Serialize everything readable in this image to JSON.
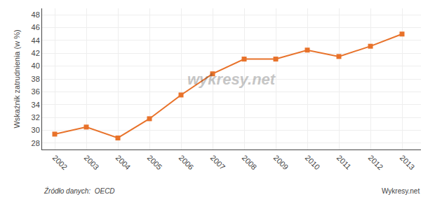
{
  "chart_data": {
    "type": "line",
    "x": [
      2002,
      2003,
      2004,
      2005,
      2006,
      2007,
      2008,
      2009,
      2010,
      2011,
      2012,
      2013
    ],
    "values": [
      29.4,
      30.5,
      28.8,
      31.8,
      35.5,
      38.8,
      41.1,
      41.1,
      42.5,
      41.5,
      43.1,
      45.0
    ],
    "color": "#E8722A",
    "marker": "square",
    "ylabel": "Wskaźnik zatrudnienia (w %)",
    "annotations": [
      "wykresy.net",
      "Źródło danych:  OECD",
      "Wykresy.net"
    ],
    "xlim": [
      2001.6,
      2013.6
    ],
    "xticks": [
      2002,
      2003,
      2004,
      2005,
      2006,
      2007,
      2008,
      2009,
      2010,
      2011,
      2012,
      2013
    ],
    "ylim": [
      27,
      49
    ],
    "yticks": [
      28,
      30,
      32,
      34,
      36,
      38,
      40,
      42,
      44,
      46,
      48
    ],
    "grid": true
  }
}
